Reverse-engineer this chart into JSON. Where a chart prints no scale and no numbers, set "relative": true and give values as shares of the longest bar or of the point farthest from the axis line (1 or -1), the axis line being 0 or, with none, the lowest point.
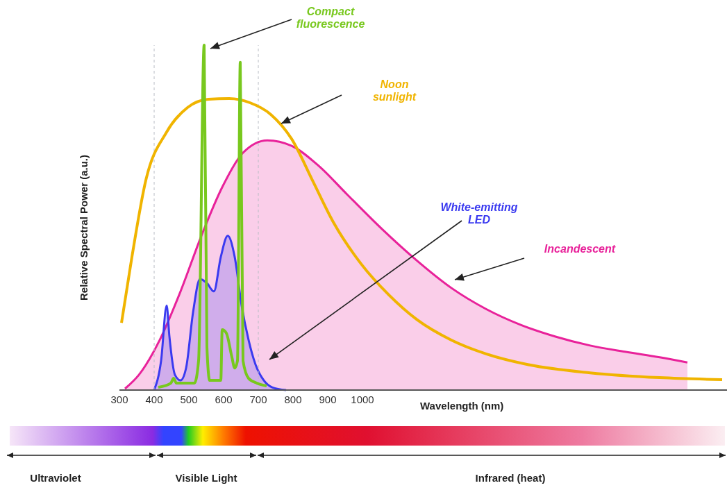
{
  "chart_data": {
    "type": "line",
    "relative": true,
    "xlabel": "Wavelength (nm)",
    "ylabel": "Relative Spectral Power (a.u.)",
    "xlim": [
      300,
      2050
    ],
    "xticks": [
      300,
      400,
      500,
      600,
      700,
      800,
      900,
      1000
    ],
    "marker": "none",
    "line_style": "solid",
    "ref_lines": [
      {
        "axis": "x",
        "value": 400,
        "color": "#b8bcc4",
        "line_style": "dashed"
      },
      {
        "axis": "x",
        "value": 700,
        "color": "#b8bcc4",
        "line_style": "dashed"
      }
    ],
    "annotations": [
      "Ultraviolet",
      "Visible Light",
      "Infrared (heat)"
    ],
    "series": [
      {
        "name": "Incandescent",
        "type": "area",
        "color": "#e8229a",
        "x": [
          316,
          356,
          416,
          476,
          536,
          596,
          656,
          726,
          796,
          876,
          956,
          1056,
          1156,
          1256,
          1356,
          1456,
          1556,
          1656,
          1756,
          1856,
          1936
        ],
        "values": [
          0.004,
          0.044,
          0.145,
          0.286,
          0.447,
          0.588,
          0.688,
          0.724,
          0.708,
          0.648,
          0.567,
          0.467,
          0.376,
          0.296,
          0.235,
          0.189,
          0.155,
          0.129,
          0.111,
          0.095,
          0.08
        ]
      },
      {
        "name": "Noon sunlight",
        "type": "line",
        "color": "#f0b400",
        "x": [
          306,
          336,
          376,
          436,
          496,
          556,
          616,
          676,
          736,
          796,
          856,
          916,
          996,
          1076,
          1156,
          1256,
          1356,
          1476,
          1656,
          1856,
          2036
        ],
        "values": [
          0.195,
          0.386,
          0.608,
          0.748,
          0.819,
          0.843,
          0.845,
          0.833,
          0.799,
          0.728,
          0.608,
          0.487,
          0.366,
          0.276,
          0.205,
          0.145,
          0.105,
          0.074,
          0.05,
          0.036,
          0.03
        ]
      },
      {
        "name": "White-emitting LED",
        "type": "area",
        "color": "#3a3af0",
        "x": [
          400,
          420,
          436,
          444,
          460,
          476,
          492,
          512,
          532,
          552,
          572,
          592,
          612,
          632,
          652,
          672,
          692,
          716,
          740,
          780
        ],
        "values": [
          0,
          0.085,
          0.245,
          0.155,
          0.044,
          0.028,
          0.064,
          0.225,
          0.322,
          0.31,
          0.286,
          0.386,
          0.447,
          0.386,
          0.245,
          0.145,
          0.074,
          0.028,
          0.008,
          0
        ]
      },
      {
        "name": "Compact fluorescence",
        "color": "#78c81e",
        "x": [
          412,
          448,
          456,
          464,
          516,
          528,
          544,
          552,
          560,
          592,
          596,
          608,
          624,
          632,
          640,
          648,
          656,
          672,
          696,
          724
        ],
        "values": [
          0.008,
          0.02,
          0.034,
          0.02,
          0.02,
          0.085,
          1,
          0.125,
          0.028,
          0.028,
          0.175,
          0.165,
          0.095,
          0.064,
          0.085,
          0.95,
          0.085,
          0.034,
          0.02,
          0.012
        ]
      }
    ]
  }
}
